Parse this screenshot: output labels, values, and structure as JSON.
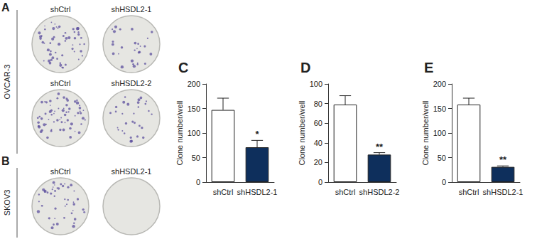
{
  "chart_data": [
    {
      "type": "bar",
      "title": "C",
      "y_label": "Clone number/well",
      "categories": [
        "shCtrl",
        "shHSDL2-1"
      ],
      "values": [
        147,
        71
      ],
      "errors": [
        24,
        14
      ],
      "colors": [
        "#ffffff",
        "#0e2f5c"
      ],
      "annotations": [
        {
          "category": "shHSDL2-1",
          "text": "*"
        }
      ],
      "ylim": [
        0,
        200
      ],
      "yticks": [
        0,
        50,
        100,
        150,
        200
      ],
      "grid": false
    },
    {
      "type": "bar",
      "title": "D",
      "y_label": "Clone number/well",
      "categories": [
        "shCtrl",
        "shHSDL2-2"
      ],
      "values": [
        79,
        28
      ],
      "errors": [
        9,
        2
      ],
      "colors": [
        "#ffffff",
        "#0e2f5c"
      ],
      "annotations": [
        {
          "category": "shHSDL2-2",
          "text": "**"
        }
      ],
      "ylim": [
        0,
        100
      ],
      "yticks": [
        0,
        20,
        40,
        60,
        80,
        100
      ],
      "grid": false
    },
    {
      "type": "bar",
      "title": "E",
      "y_label": "Clone number/well",
      "categories": [
        "shCtrl",
        "shHSDL2-1"
      ],
      "values": [
        158,
        31
      ],
      "errors": [
        13,
        2
      ],
      "colors": [
        "#ffffff",
        "#0e2f5c"
      ],
      "annotations": [
        {
          "category": "shHSDL2-1",
          "text": "**"
        }
      ],
      "ylim": [
        0,
        200
      ],
      "yticks": [
        0,
        50,
        100,
        150,
        200
      ],
      "grid": false
    }
  ],
  "panels": [
    {
      "label": "A",
      "cell_line": "OVCAR-3",
      "rows": [
        [
          "shCtrl",
          "shHSDL2-1"
        ],
        [
          "shCtrl",
          "shHSDL2-2"
        ]
      ]
    },
    {
      "label": "B",
      "cell_line": "SKOV3",
      "rows": [
        [
          "shCtrl",
          "shHSDL2-1"
        ]
      ]
    }
  ]
}
